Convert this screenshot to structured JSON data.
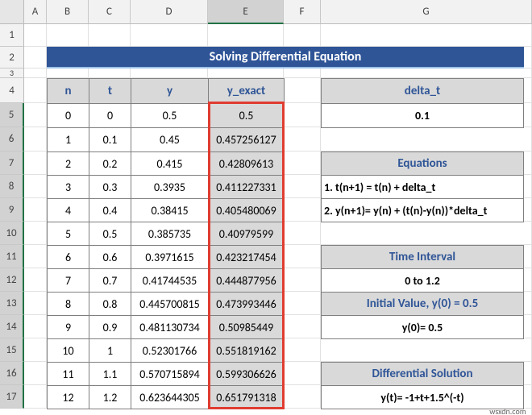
{
  "columns": [
    "A",
    "B",
    "C",
    "D",
    "E",
    "F",
    "G"
  ],
  "rows": [
    "1",
    "2",
    "3",
    "4",
    "5",
    "6",
    "7",
    "8",
    "9",
    "10",
    "11",
    "12",
    "13",
    "14",
    "15",
    "16",
    "17"
  ],
  "title": "Solving Differential Equation",
  "table": {
    "header": [
      "n",
      "t",
      "y",
      "y_exact"
    ],
    "rows": [
      [
        "0",
        "0",
        "0.5",
        "0.5"
      ],
      [
        "1",
        "0.1",
        "0.45",
        "0.457256127"
      ],
      [
        "2",
        "0.2",
        "0.415",
        "0.42809613"
      ],
      [
        "3",
        "0.3",
        "0.3935",
        "0.411227331"
      ],
      [
        "4",
        "0.4",
        "0.38415",
        "0.405480069"
      ],
      [
        "5",
        "0.5",
        "0.385735",
        "0.40979599"
      ],
      [
        "6",
        "0.6",
        "0.3971615",
        "0.423217454"
      ],
      [
        "7",
        "0.7",
        "0.41744535",
        "0.444877956"
      ],
      [
        "8",
        "0.8",
        "0.445700815",
        "0.473993446"
      ],
      [
        "9",
        "0.9",
        "0.481130734",
        "0.50985449"
      ],
      [
        "10",
        "1",
        "0.52301766",
        "0.551819162"
      ],
      [
        "11",
        "1.1",
        "0.570715894",
        "0.599306626"
      ],
      [
        "12",
        "1.2",
        "0.623644305",
        "0.651791318"
      ]
    ]
  },
  "panel": {
    "delta_t": [
      "delta_t",
      "0.1"
    ],
    "equations": [
      "Equations",
      "1. t(n+1) = t(n) + delta_t",
      "2. y(n+1)= y(n) + (t(n)-y(n))*delta_t"
    ],
    "time_interval": [
      "Time Interval",
      "0 to 1.2"
    ],
    "initial_value": [
      "Initial Value, y(0) = 0.5",
      "y(0)= 0.5"
    ],
    "differential_solution": [
      "Differential Solution",
      "y(t)= -1+t+1.5^(-t)"
    ]
  },
  "watermark": "wsxdn.com"
}
